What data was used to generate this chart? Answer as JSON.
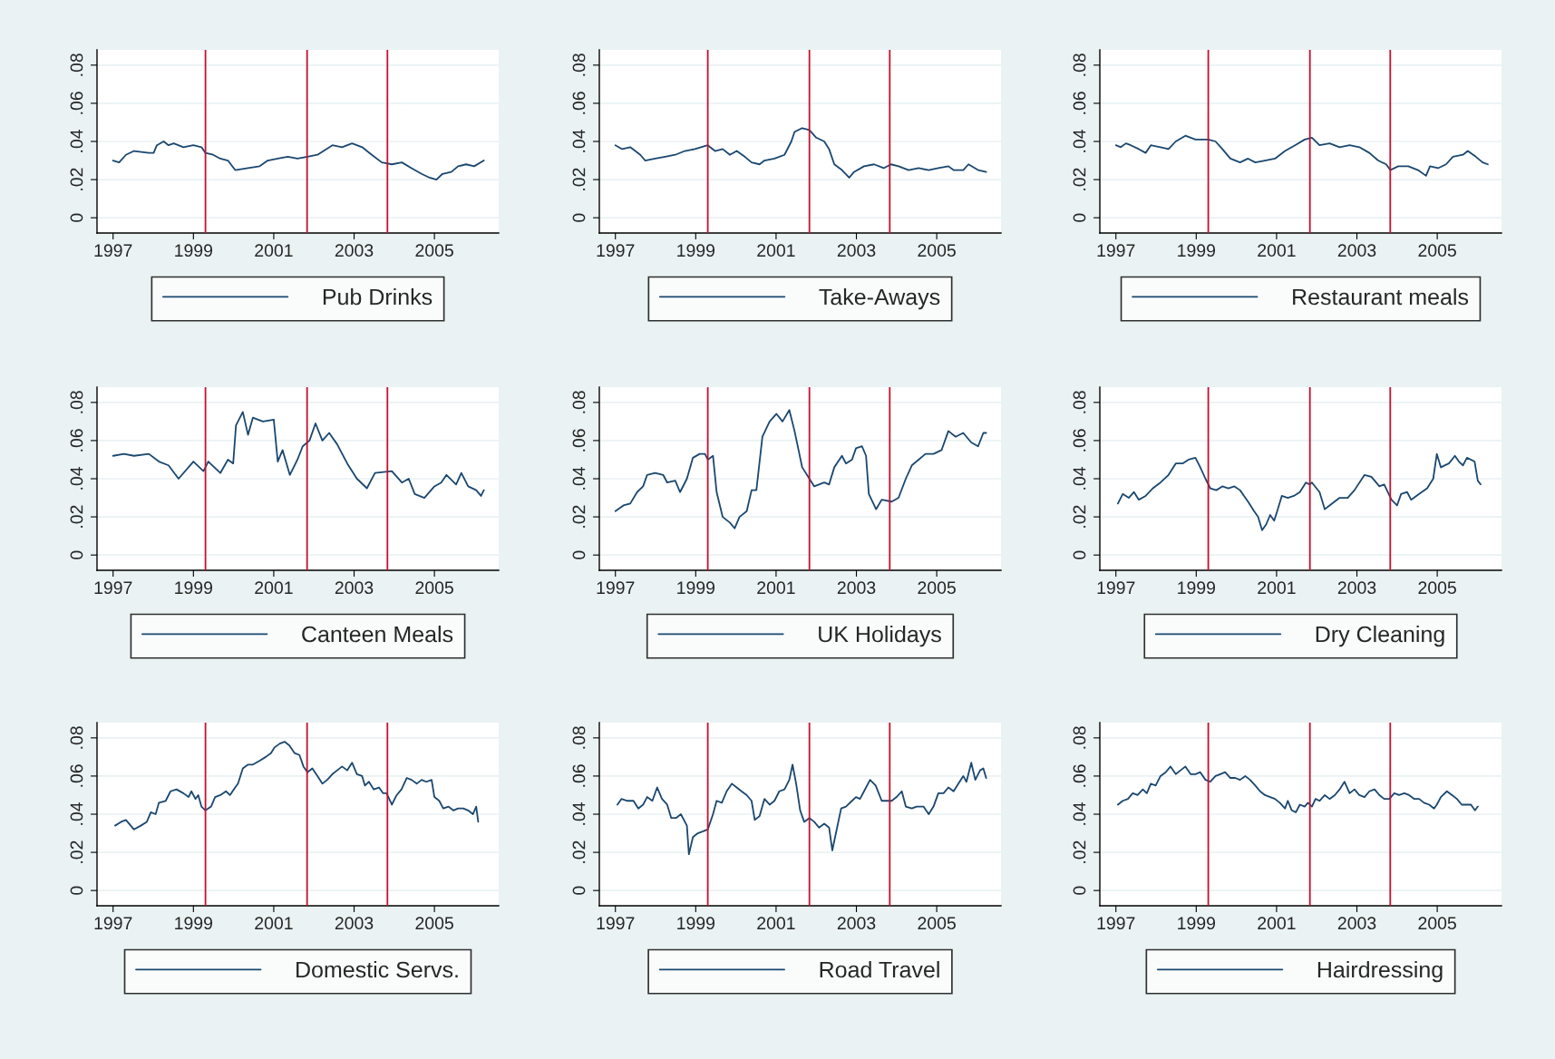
{
  "chart_data": [
    {
      "type": "line",
      "xlim": [
        1996.6,
        2006.6
      ],
      "xticks": [
        1997,
        1999,
        2001,
        2003,
        2005
      ],
      "ylim": [
        -0.008,
        0.088
      ],
      "yticks": [
        0,
        {
          "value": 0.02,
          "label": ".02"
        },
        {
          "value": 0.04,
          "label": ".04"
        },
        {
          "value": 0.06,
          "label": ".06"
        },
        {
          "value": 0.08,
          "label": ".08"
        }
      ],
      "grid": "y",
      "legend": "bottom",
      "ref_lines": [
        {
          "axis": "x",
          "value": 1999.3,
          "color": "#c8102e"
        },
        {
          "axis": "x",
          "value": 2001.83,
          "color": "#c8102e"
        },
        {
          "axis": "x",
          "value": 2003.83,
          "color": "#c8102e"
        }
      ],
      "series": [
        {
          "name": "Pub Drinks",
          "color": "#1a476f",
          "x": [
            1997.0,
            1997.15,
            1997.32,
            1997.52,
            1997.89,
            1998.01,
            1998.09,
            1998.26,
            1998.38,
            1998.51,
            1998.75,
            1999.0,
            1999.2,
            1999.3,
            1999.49,
            1999.67,
            1999.86,
            2000.04,
            2000.36,
            2000.65,
            2000.85,
            2001.1,
            2001.35,
            2001.59,
            2001.84,
            2002.09,
            2002.46,
            2002.7,
            2002.95,
            2003.2,
            2003.44,
            2003.69,
            2003.94,
            2004.19,
            2004.43,
            2004.68,
            2004.88,
            2005.05,
            2005.2,
            2005.42,
            2005.59,
            2005.79,
            2005.99,
            2006.23
          ],
          "values": [
            0.03,
            0.029,
            0.033,
            0.035,
            0.034,
            0.034,
            0.038,
            0.04,
            0.038,
            0.039,
            0.037,
            0.038,
            0.037,
            0.034,
            0.033,
            0.031,
            0.03,
            0.025,
            0.026,
            0.027,
            0.03,
            0.031,
            0.032,
            0.031,
            0.032,
            0.033,
            0.038,
            0.037,
            0.039,
            0.037,
            0.033,
            0.029,
            0.028,
            0.029,
            0.026,
            0.023,
            0.021,
            0.02,
            0.023,
            0.024,
            0.027,
            0.028,
            0.027,
            0.03
          ]
        }
      ]
    },
    {
      "type": "line",
      "xlim": [
        1996.6,
        2006.6
      ],
      "xticks": [
        1997,
        1999,
        2001,
        2003,
        2005
      ],
      "ylim": [
        -0.008,
        0.088
      ],
      "yticks": [
        0,
        {
          "value": 0.02,
          "label": ".02"
        },
        {
          "value": 0.04,
          "label": ".04"
        },
        {
          "value": 0.06,
          "label": ".06"
        },
        {
          "value": 0.08,
          "label": ".08"
        }
      ],
      "grid": "y",
      "legend": "bottom",
      "ref_lines": [
        {
          "axis": "x",
          "value": 1999.3,
          "color": "#c8102e"
        },
        {
          "axis": "x",
          "value": 2001.83,
          "color": "#c8102e"
        },
        {
          "axis": "x",
          "value": 2003.83,
          "color": "#c8102e"
        }
      ],
      "series": [
        {
          "name": "Take-Aways",
          "color": "#1a476f",
          "x": [
            1997.0,
            1997.17,
            1997.37,
            1997.62,
            1997.74,
            1997.99,
            1998.24,
            1998.49,
            1998.73,
            1998.98,
            1999.3,
            1999.48,
            1999.67,
            1999.85,
            2000.02,
            2000.22,
            2000.39,
            2000.59,
            2000.71,
            2000.96,
            2001.21,
            2001.38,
            2001.46,
            2001.65,
            2001.83,
            2002.0,
            2002.2,
            2002.32,
            2002.45,
            2002.64,
            2002.82,
            2002.94,
            2003.19,
            2003.44,
            2003.68,
            2003.86,
            2004.05,
            2004.3,
            2004.55,
            2004.8,
            2005.04,
            2005.29,
            2005.42,
            2005.66,
            2005.79,
            2006.03,
            2006.23
          ],
          "values": [
            0.038,
            0.036,
            0.037,
            0.033,
            0.03,
            0.031,
            0.032,
            0.033,
            0.035,
            0.036,
            0.038,
            0.035,
            0.036,
            0.033,
            0.035,
            0.032,
            0.029,
            0.028,
            0.03,
            0.031,
            0.033,
            0.04,
            0.045,
            0.047,
            0.046,
            0.042,
            0.04,
            0.036,
            0.028,
            0.025,
            0.021,
            0.024,
            0.027,
            0.028,
            0.026,
            0.028,
            0.027,
            0.025,
            0.026,
            0.025,
            0.026,
            0.027,
            0.025,
            0.025,
            0.028,
            0.025,
            0.024
          ]
        }
      ]
    },
    {
      "type": "line",
      "xlim": [
        1996.6,
        2006.6
      ],
      "xticks": [
        1997,
        1999,
        2001,
        2003,
        2005
      ],
      "ylim": [
        -0.008,
        0.088
      ],
      "yticks": [
        0,
        {
          "value": 0.02,
          "label": ".02"
        },
        {
          "value": 0.04,
          "label": ".04"
        },
        {
          "value": 0.06,
          "label": ".06"
        },
        {
          "value": 0.08,
          "label": ".08"
        }
      ],
      "grid": "y",
      "legend": "bottom",
      "ref_lines": [
        {
          "axis": "x",
          "value": 1999.3,
          "color": "#c8102e"
        },
        {
          "axis": "x",
          "value": 2001.83,
          "color": "#c8102e"
        },
        {
          "axis": "x",
          "value": 2003.83,
          "color": "#c8102e"
        }
      ],
      "series": [
        {
          "name": "Restaurant meals",
          "color": "#1a476f",
          "x": [
            1997.0,
            1997.12,
            1997.25,
            1997.37,
            1997.57,
            1997.74,
            1997.87,
            1998.11,
            1998.31,
            1998.49,
            1998.73,
            1998.98,
            1999.3,
            1999.48,
            1999.65,
            1999.85,
            2000.09,
            2000.29,
            2000.47,
            2000.71,
            2000.96,
            2001.21,
            2001.46,
            2001.7,
            2001.88,
            2002.07,
            2002.32,
            2002.57,
            2002.82,
            2003.06,
            2003.31,
            2003.53,
            2003.73,
            2003.83,
            2004.03,
            2004.28,
            2004.52,
            2004.72,
            2004.82,
            2005.02,
            2005.22,
            2005.39,
            2005.64,
            2005.76,
            2005.96,
            2006.13,
            2006.26
          ],
          "values": [
            0.038,
            0.037,
            0.039,
            0.038,
            0.036,
            0.034,
            0.038,
            0.037,
            0.036,
            0.04,
            0.043,
            0.041,
            0.041,
            0.04,
            0.036,
            0.031,
            0.029,
            0.031,
            0.029,
            0.03,
            0.031,
            0.035,
            0.038,
            0.041,
            0.042,
            0.038,
            0.039,
            0.037,
            0.038,
            0.037,
            0.034,
            0.03,
            0.028,
            0.025,
            0.027,
            0.027,
            0.025,
            0.022,
            0.027,
            0.026,
            0.028,
            0.032,
            0.033,
            0.035,
            0.032,
            0.029,
            0.028
          ]
        }
      ]
    },
    {
      "type": "line",
      "xlim": [
        1996.6,
        2006.6
      ],
      "xticks": [
        1997,
        1999,
        2001,
        2003,
        2005
      ],
      "ylim": [
        -0.008,
        0.088
      ],
      "yticks": [
        0,
        {
          "value": 0.02,
          "label": ".02"
        },
        {
          "value": 0.04,
          "label": ".04"
        },
        {
          "value": 0.06,
          "label": ".06"
        },
        {
          "value": 0.08,
          "label": ".08"
        }
      ],
      "grid": "y",
      "legend": "bottom",
      "ref_lines": [
        {
          "axis": "x",
          "value": 1999.3,
          "color": "#c8102e"
        },
        {
          "axis": "x",
          "value": 2001.83,
          "color": "#c8102e"
        },
        {
          "axis": "x",
          "value": 2003.83,
          "color": "#c8102e"
        }
      ],
      "series": [
        {
          "name": "Canteen Meals",
          "color": "#1a476f",
          "x": [
            1997.0,
            1997.27,
            1997.52,
            1997.89,
            1998.14,
            1998.38,
            1998.63,
            1999.0,
            1999.25,
            1999.37,
            1999.67,
            1999.86,
            1999.99,
            2000.06,
            2000.23,
            2000.36,
            2000.48,
            2000.73,
            2001.0,
            2001.1,
            2001.22,
            2001.4,
            2001.59,
            2001.72,
            2001.89,
            2002.04,
            2002.21,
            2002.38,
            2002.58,
            2002.83,
            2003.07,
            2003.32,
            2003.52,
            2003.94,
            2004.19,
            2004.36,
            2004.51,
            2004.75,
            2005.0,
            2005.17,
            2005.3,
            2005.54,
            2005.67,
            2005.84,
            2006.04,
            2006.16,
            2006.23
          ],
          "values": [
            0.052,
            0.053,
            0.052,
            0.053,
            0.049,
            0.047,
            0.04,
            0.049,
            0.044,
            0.049,
            0.043,
            0.05,
            0.048,
            0.068,
            0.075,
            0.063,
            0.072,
            0.07,
            0.071,
            0.049,
            0.055,
            0.042,
            0.05,
            0.057,
            0.06,
            0.069,
            0.06,
            0.064,
            0.058,
            0.048,
            0.04,
            0.035,
            0.043,
            0.044,
            0.038,
            0.04,
            0.032,
            0.03,
            0.036,
            0.038,
            0.042,
            0.037,
            0.043,
            0.036,
            0.034,
            0.031,
            0.034
          ]
        }
      ]
    },
    {
      "type": "line",
      "xlim": [
        1996.6,
        2006.6
      ],
      "xticks": [
        1997,
        1999,
        2001,
        2003,
        2005
      ],
      "ylim": [
        -0.008,
        0.088
      ],
      "yticks": [
        0,
        {
          "value": 0.02,
          "label": ".02"
        },
        {
          "value": 0.04,
          "label": ".04"
        },
        {
          "value": 0.06,
          "label": ".06"
        },
        {
          "value": 0.08,
          "label": ".08"
        }
      ],
      "grid": "y",
      "legend": "bottom",
      "ref_lines": [
        {
          "axis": "x",
          "value": 1999.3,
          "color": "#c8102e"
        },
        {
          "axis": "x",
          "value": 2001.83,
          "color": "#c8102e"
        },
        {
          "axis": "x",
          "value": 2003.83,
          "color": "#c8102e"
        }
      ],
      "series": [
        {
          "name": "UK Holidays",
          "color": "#1a476f",
          "x": [
            1997.0,
            1997.2,
            1997.37,
            1997.54,
            1997.69,
            1997.79,
            1997.99,
            1998.19,
            1998.29,
            1998.49,
            1998.61,
            1998.78,
            1998.93,
            1999.1,
            1999.23,
            1999.3,
            1999.43,
            1999.52,
            1999.67,
            1999.85,
            1999.97,
            2000.09,
            2000.27,
            2000.39,
            2000.51,
            2000.66,
            2000.84,
            2001.01,
            2001.16,
            2001.33,
            2001.46,
            2001.65,
            2001.83,
            2001.95,
            2002.2,
            2002.32,
            2002.45,
            2002.64,
            2002.74,
            2002.89,
            2002.99,
            2003.14,
            2003.24,
            2003.31,
            2003.49,
            2003.63,
            2003.88,
            2004.05,
            2004.23,
            2004.38,
            2004.55,
            2004.72,
            2004.92,
            2005.12,
            2005.29,
            2005.47,
            2005.66,
            2005.86,
            2006.03,
            2006.16,
            2006.23
          ],
          "values": [
            0.023,
            0.026,
            0.027,
            0.033,
            0.036,
            0.042,
            0.043,
            0.042,
            0.038,
            0.039,
            0.033,
            0.04,
            0.051,
            0.053,
            0.053,
            0.05,
            0.052,
            0.033,
            0.02,
            0.017,
            0.014,
            0.02,
            0.023,
            0.034,
            0.034,
            0.062,
            0.07,
            0.074,
            0.07,
            0.076,
            0.065,
            0.046,
            0.04,
            0.036,
            0.038,
            0.037,
            0.046,
            0.052,
            0.048,
            0.05,
            0.056,
            0.057,
            0.052,
            0.032,
            0.024,
            0.029,
            0.028,
            0.03,
            0.04,
            0.047,
            0.05,
            0.053,
            0.053,
            0.055,
            0.065,
            0.062,
            0.064,
            0.059,
            0.057,
            0.064,
            0.064
          ]
        }
      ]
    },
    {
      "type": "line",
      "xlim": [
        1996.6,
        2006.6
      ],
      "xticks": [
        1997,
        1999,
        2001,
        2003,
        2005
      ],
      "ylim": [
        -0.008,
        0.088
      ],
      "yticks": [
        0,
        {
          "value": 0.02,
          "label": ".02"
        },
        {
          "value": 0.04,
          "label": ".04"
        },
        {
          "value": 0.06,
          "label": ".06"
        },
        {
          "value": 0.08,
          "label": ".08"
        }
      ],
      "grid": "y",
      "legend": "bottom",
      "ref_lines": [
        {
          "axis": "x",
          "value": 1999.3,
          "color": "#c8102e"
        },
        {
          "axis": "x",
          "value": 2001.83,
          "color": "#c8102e"
        },
        {
          "axis": "x",
          "value": 2003.83,
          "color": "#c8102e"
        }
      ],
      "series": [
        {
          "name": "Dry Cleaning",
          "color": "#1a476f",
          "x": [
            1997.05,
            1997.17,
            1997.32,
            1997.45,
            1997.57,
            1997.74,
            1997.92,
            1998.11,
            1998.31,
            1998.49,
            1998.66,
            1998.81,
            1998.98,
            1999.1,
            1999.23,
            1999.35,
            1999.5,
            1999.65,
            1999.8,
            1999.95,
            2000.09,
            2000.19,
            2000.29,
            2000.44,
            2000.54,
            2000.64,
            2000.74,
            2000.84,
            2000.94,
            2001.03,
            2001.13,
            2001.28,
            2001.43,
            2001.58,
            2001.73,
            2001.83,
            2001.88,
            2002.07,
            2002.2,
            2002.32,
            2002.57,
            2002.77,
            2002.94,
            2003.19,
            2003.36,
            2003.56,
            2003.68,
            2003.86,
            2004.0,
            2004.1,
            2004.25,
            2004.35,
            2004.55,
            2004.75,
            2004.9,
            2004.99,
            2005.09,
            2005.29,
            2005.44,
            2005.54,
            2005.64,
            2005.74,
            2005.93,
            2006.01,
            2006.08
          ],
          "values": [
            0.027,
            0.032,
            0.03,
            0.033,
            0.029,
            0.031,
            0.035,
            0.038,
            0.042,
            0.048,
            0.048,
            0.05,
            0.051,
            0.046,
            0.04,
            0.035,
            0.034,
            0.036,
            0.035,
            0.036,
            0.034,
            0.031,
            0.028,
            0.023,
            0.02,
            0.013,
            0.016,
            0.021,
            0.018,
            0.024,
            0.031,
            0.03,
            0.031,
            0.033,
            0.038,
            0.037,
            0.038,
            0.033,
            0.024,
            0.026,
            0.03,
            0.03,
            0.034,
            0.042,
            0.041,
            0.036,
            0.037,
            0.029,
            0.026,
            0.032,
            0.033,
            0.029,
            0.032,
            0.035,
            0.04,
            0.053,
            0.046,
            0.048,
            0.052,
            0.049,
            0.047,
            0.051,
            0.049,
            0.039,
            0.037
          ]
        }
      ]
    },
    {
      "type": "line",
      "xlim": [
        1996.6,
        2006.6
      ],
      "xticks": [
        1997,
        1999,
        2001,
        2003,
        2005
      ],
      "ylim": [
        -0.008,
        0.088
      ],
      "yticks": [
        0,
        {
          "value": 0.02,
          "label": ".02"
        },
        {
          "value": 0.04,
          "label": ".04"
        },
        {
          "value": 0.06,
          "label": ".06"
        },
        {
          "value": 0.08,
          "label": ".08"
        }
      ],
      "grid": "y",
      "legend": "bottom",
      "ref_lines": [
        {
          "axis": "x",
          "value": 1999.3,
          "color": "#c8102e"
        },
        {
          "axis": "x",
          "value": 2001.83,
          "color": "#c8102e"
        },
        {
          "axis": "x",
          "value": 2003.83,
          "color": "#c8102e"
        }
      ],
      "series": [
        {
          "name": "Domestic Servs.",
          "color": "#1a476f",
          "x": [
            1997.05,
            1997.2,
            1997.32,
            1997.44,
            1997.52,
            1997.69,
            1997.84,
            1997.94,
            1998.06,
            1998.14,
            1998.31,
            1998.43,
            1998.58,
            1998.75,
            1998.88,
            1998.95,
            1999.05,
            1999.12,
            1999.2,
            1999.3,
            1999.44,
            1999.54,
            1999.67,
            1999.81,
            1999.91,
            2000.04,
            2000.11,
            2000.23,
            2000.36,
            2000.48,
            2000.65,
            2000.8,
            2000.93,
            2001.02,
            2001.15,
            2001.27,
            2001.39,
            2001.52,
            2001.64,
            2001.74,
            2001.84,
            2001.96,
            2002.09,
            2002.21,
            2002.33,
            2002.46,
            2002.58,
            2002.7,
            2002.83,
            2002.95,
            2003.07,
            2003.2,
            2003.27,
            2003.37,
            2003.49,
            2003.62,
            2003.72,
            2003.81,
            2003.94,
            2004.06,
            2004.18,
            2004.31,
            2004.43,
            2004.56,
            2004.68,
            2004.8,
            2004.93,
            2005.0,
            2005.12,
            2005.22,
            2005.35,
            2005.47,
            2005.59,
            2005.72,
            2005.84,
            2005.96,
            2006.04,
            2006.09
          ],
          "values": [
            0.034,
            0.036,
            0.037,
            0.034,
            0.032,
            0.034,
            0.036,
            0.041,
            0.04,
            0.046,
            0.047,
            0.052,
            0.053,
            0.051,
            0.049,
            0.052,
            0.048,
            0.05,
            0.044,
            0.042,
            0.044,
            0.049,
            0.05,
            0.052,
            0.05,
            0.054,
            0.056,
            0.064,
            0.066,
            0.066,
            0.068,
            0.07,
            0.072,
            0.075,
            0.077,
            0.078,
            0.076,
            0.072,
            0.071,
            0.065,
            0.062,
            0.064,
            0.06,
            0.056,
            0.058,
            0.061,
            0.063,
            0.065,
            0.063,
            0.067,
            0.061,
            0.06,
            0.055,
            0.057,
            0.053,
            0.054,
            0.051,
            0.051,
            0.045,
            0.05,
            0.053,
            0.059,
            0.058,
            0.056,
            0.058,
            0.057,
            0.058,
            0.049,
            0.047,
            0.043,
            0.044,
            0.042,
            0.043,
            0.043,
            0.042,
            0.04,
            0.044,
            0.036
          ]
        }
      ]
    },
    {
      "type": "line",
      "xlim": [
        1996.6,
        2006.6
      ],
      "xticks": [
        1997,
        1999,
        2001,
        2003,
        2005
      ],
      "ylim": [
        -0.008,
        0.088
      ],
      "yticks": [
        0,
        {
          "value": 0.02,
          "label": ".02"
        },
        {
          "value": 0.04,
          "label": ".04"
        },
        {
          "value": 0.06,
          "label": ".06"
        },
        {
          "value": 0.08,
          "label": ".08"
        }
      ],
      "grid": "y",
      "legend": "bottom",
      "ref_lines": [
        {
          "axis": "x",
          "value": 1999.3,
          "color": "#c8102e"
        },
        {
          "axis": "x",
          "value": 2001.83,
          "color": "#c8102e"
        },
        {
          "axis": "x",
          "value": 2003.83,
          "color": "#c8102e"
        }
      ],
      "series": [
        {
          "name": "Road Travel",
          "color": "#1a476f",
          "x": [
            1997.05,
            1997.15,
            1997.3,
            1997.45,
            1997.57,
            1997.69,
            1997.79,
            1997.92,
            1998.04,
            1998.16,
            1998.29,
            1998.39,
            1998.51,
            1998.63,
            1998.73,
            1998.78,
            1998.83,
            1998.93,
            1999.05,
            1999.18,
            1999.3,
            1999.43,
            1999.52,
            1999.65,
            1999.77,
            1999.9,
            2000.02,
            2000.14,
            2000.27,
            2000.39,
            2000.47,
            2000.59,
            2000.71,
            2000.84,
            2000.96,
            2001.08,
            2001.21,
            2001.33,
            2001.41,
            2001.5,
            2001.6,
            2001.7,
            2001.83,
            2001.95,
            2002.07,
            2002.2,
            2002.32,
            2002.4,
            2002.49,
            2002.62,
            2002.74,
            2002.89,
            2002.99,
            2003.09,
            2003.19,
            2003.34,
            2003.48,
            2003.63,
            2003.76,
            2003.88,
            2004.0,
            2004.13,
            2004.23,
            2004.38,
            2004.5,
            2004.67,
            2004.8,
            2004.92,
            2005.04,
            2005.17,
            2005.29,
            2005.42,
            2005.54,
            2005.66,
            2005.74,
            2005.86,
            2005.96,
            2006.08,
            2006.16,
            2006.23
          ],
          "values": [
            0.045,
            0.048,
            0.047,
            0.047,
            0.043,
            0.045,
            0.049,
            0.047,
            0.054,
            0.048,
            0.045,
            0.038,
            0.038,
            0.04,
            0.036,
            0.034,
            0.019,
            0.028,
            0.03,
            0.031,
            0.032,
            0.04,
            0.047,
            0.046,
            0.052,
            0.056,
            0.054,
            0.052,
            0.05,
            0.047,
            0.037,
            0.039,
            0.048,
            0.045,
            0.047,
            0.052,
            0.053,
            0.058,
            0.066,
            0.056,
            0.042,
            0.036,
            0.038,
            0.036,
            0.033,
            0.035,
            0.033,
            0.021,
            0.03,
            0.043,
            0.044,
            0.047,
            0.049,
            0.048,
            0.052,
            0.058,
            0.055,
            0.047,
            0.047,
            0.047,
            0.049,
            0.052,
            0.044,
            0.043,
            0.044,
            0.044,
            0.04,
            0.044,
            0.051,
            0.051,
            0.054,
            0.052,
            0.056,
            0.06,
            0.057,
            0.067,
            0.058,
            0.063,
            0.064,
            0.059
          ]
        }
      ]
    },
    {
      "type": "line",
      "xlim": [
        1996.6,
        2006.6
      ],
      "xticks": [
        1997,
        1999,
        2001,
        2003,
        2005
      ],
      "ylim": [
        -0.008,
        0.088
      ],
      "yticks": [
        0,
        {
          "value": 0.02,
          "label": ".02"
        },
        {
          "value": 0.04,
          "label": ".04"
        },
        {
          "value": 0.06,
          "label": ".06"
        },
        {
          "value": 0.08,
          "label": ".08"
        }
      ],
      "grid": "y",
      "legend": "bottom",
      "ref_lines": [
        {
          "axis": "x",
          "value": 1999.3,
          "color": "#c8102e"
        },
        {
          "axis": "x",
          "value": 2001.83,
          "color": "#c8102e"
        },
        {
          "axis": "x",
          "value": 2003.83,
          "color": "#c8102e"
        }
      ],
      "series": [
        {
          "name": "Hairdressing",
          "color": "#1a476f",
          "x": [
            1997.05,
            1997.17,
            1997.3,
            1997.42,
            1997.54,
            1997.67,
            1997.77,
            1997.87,
            1997.99,
            1998.11,
            1998.24,
            1998.36,
            1998.49,
            1998.61,
            1998.73,
            1998.86,
            1998.98,
            1999.1,
            1999.23,
            1999.35,
            1999.48,
            1999.6,
            1999.72,
            1999.85,
            1999.97,
            2000.09,
            2000.22,
            2000.34,
            2000.47,
            2000.59,
            2000.71,
            2000.84,
            2000.96,
            2001.08,
            2001.21,
            2001.28,
            2001.38,
            2001.48,
            2001.58,
            2001.7,
            2001.78,
            2001.88,
            2001.97,
            2002.07,
            2002.2,
            2002.32,
            2002.45,
            2002.57,
            2002.69,
            2002.82,
            2002.94,
            2003.06,
            2003.19,
            2003.31,
            2003.44,
            2003.56,
            2003.68,
            2003.81,
            2003.93,
            2004.05,
            2004.18,
            2004.3,
            2004.43,
            2004.55,
            2004.67,
            2004.8,
            2004.92,
            2004.99,
            2005.09,
            2005.24,
            2005.37,
            2005.49,
            2005.61,
            2005.74,
            2005.84,
            2005.94,
            2006.01
          ],
          "values": [
            0.045,
            0.047,
            0.048,
            0.051,
            0.05,
            0.053,
            0.051,
            0.056,
            0.055,
            0.06,
            0.062,
            0.065,
            0.061,
            0.063,
            0.065,
            0.061,
            0.061,
            0.062,
            0.058,
            0.057,
            0.06,
            0.061,
            0.062,
            0.059,
            0.059,
            0.058,
            0.06,
            0.058,
            0.055,
            0.052,
            0.05,
            0.049,
            0.048,
            0.046,
            0.043,
            0.047,
            0.042,
            0.041,
            0.045,
            0.044,
            0.046,
            0.044,
            0.048,
            0.047,
            0.05,
            0.048,
            0.05,
            0.053,
            0.057,
            0.051,
            0.053,
            0.05,
            0.049,
            0.052,
            0.053,
            0.05,
            0.048,
            0.048,
            0.051,
            0.05,
            0.051,
            0.05,
            0.048,
            0.048,
            0.046,
            0.045,
            0.043,
            0.045,
            0.049,
            0.052,
            0.05,
            0.048,
            0.045,
            0.045,
            0.045,
            0.042,
            0.044
          ]
        }
      ]
    }
  ]
}
